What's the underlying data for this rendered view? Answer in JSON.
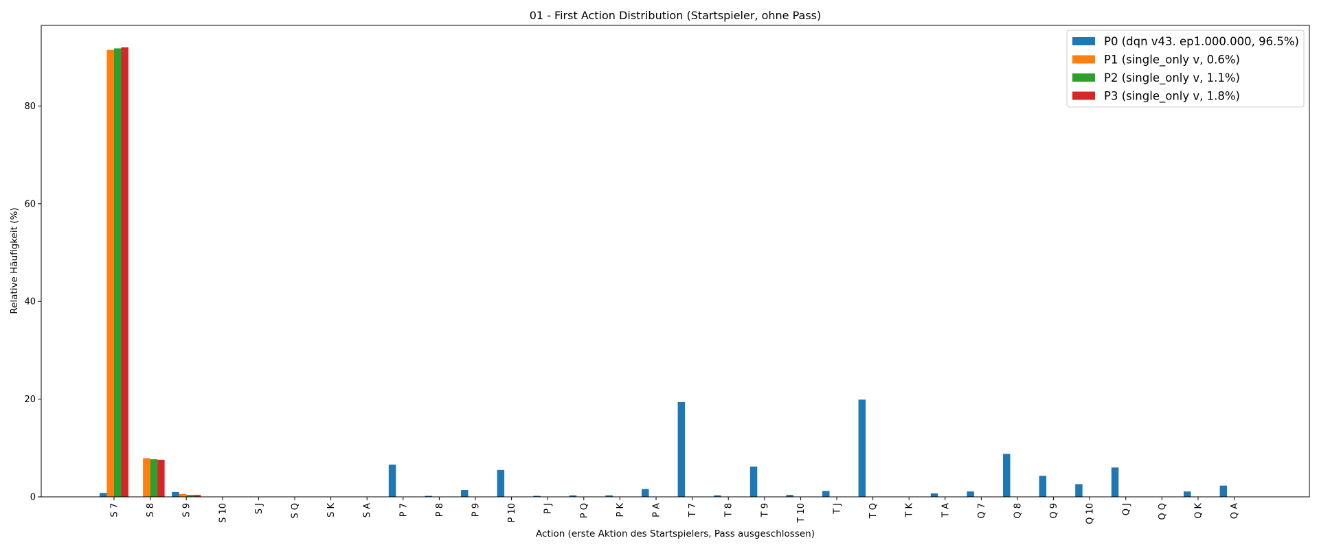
{
  "chart_data": {
    "type": "bar",
    "title": "01 - First Action Distribution (Startspieler, ohne Pass)",
    "xlabel": "Action (erste Aktion des Startspielers, Pass ausgeschlossen)",
    "ylabel": "Relative Häufigkeit (%)",
    "ylim": [
      0,
      96.5
    ],
    "yticks": [
      0,
      20,
      40,
      60,
      80
    ],
    "grid": false,
    "legend_position": "top-right",
    "categories": [
      "S 7",
      "S 8",
      "S 9",
      "S 10",
      "S J",
      "S Q",
      "S K",
      "S A",
      "P 7",
      "P 8",
      "P 9",
      "P 10",
      "P J",
      "P Q",
      "P K",
      "P A",
      "T 7",
      "T 8",
      "T 9",
      "T 10",
      "T J",
      "T Q",
      "T K",
      "T A",
      "Q 7",
      "Q 8",
      "Q 9",
      "Q 10",
      "Q J",
      "Q Q",
      "Q K",
      "Q A"
    ],
    "series": [
      {
        "name": "P0 (dqn v43. ep1.000.000, 96.5%)",
        "color": "#1f77b4",
        "values": [
          0.8,
          0,
          1.0,
          0,
          0,
          0,
          0,
          0,
          6.6,
          0.2,
          1.4,
          5.5,
          0.2,
          0.3,
          0.3,
          1.6,
          19.4,
          0.3,
          6.2,
          0.4,
          1.2,
          19.9,
          0,
          0.7,
          1.1,
          8.8,
          4.3,
          2.6,
          6.0,
          0,
          1.1,
          2.3
        ]
      },
      {
        "name": "P1 (single_only v, 0.6%)",
        "color": "#ff7f0e",
        "values": [
          91.5,
          7.9,
          0.6,
          0,
          0,
          0,
          0,
          0,
          0,
          0,
          0,
          0,
          0,
          0,
          0,
          0,
          0,
          0,
          0,
          0,
          0,
          0,
          0,
          0,
          0,
          0,
          0,
          0,
          0,
          0,
          0,
          0
        ]
      },
      {
        "name": "P2 (single_only v, 1.1%)",
        "color": "#2ca02c",
        "values": [
          91.8,
          7.7,
          0.4,
          0,
          0,
          0,
          0,
          0,
          0,
          0,
          0,
          0,
          0,
          0,
          0,
          0,
          0,
          0,
          0,
          0,
          0,
          0,
          0,
          0,
          0,
          0,
          0,
          0,
          0,
          0,
          0,
          0
        ]
      },
      {
        "name": "P3 (single_only v, 1.8%)",
        "color": "#d62728",
        "values": [
          92.0,
          7.6,
          0.4,
          0,
          0,
          0,
          0,
          0,
          0,
          0,
          0,
          0,
          0,
          0,
          0,
          0,
          0,
          0,
          0,
          0,
          0,
          0,
          0,
          0,
          0,
          0,
          0,
          0,
          0,
          0,
          0,
          0
        ]
      }
    ]
  }
}
